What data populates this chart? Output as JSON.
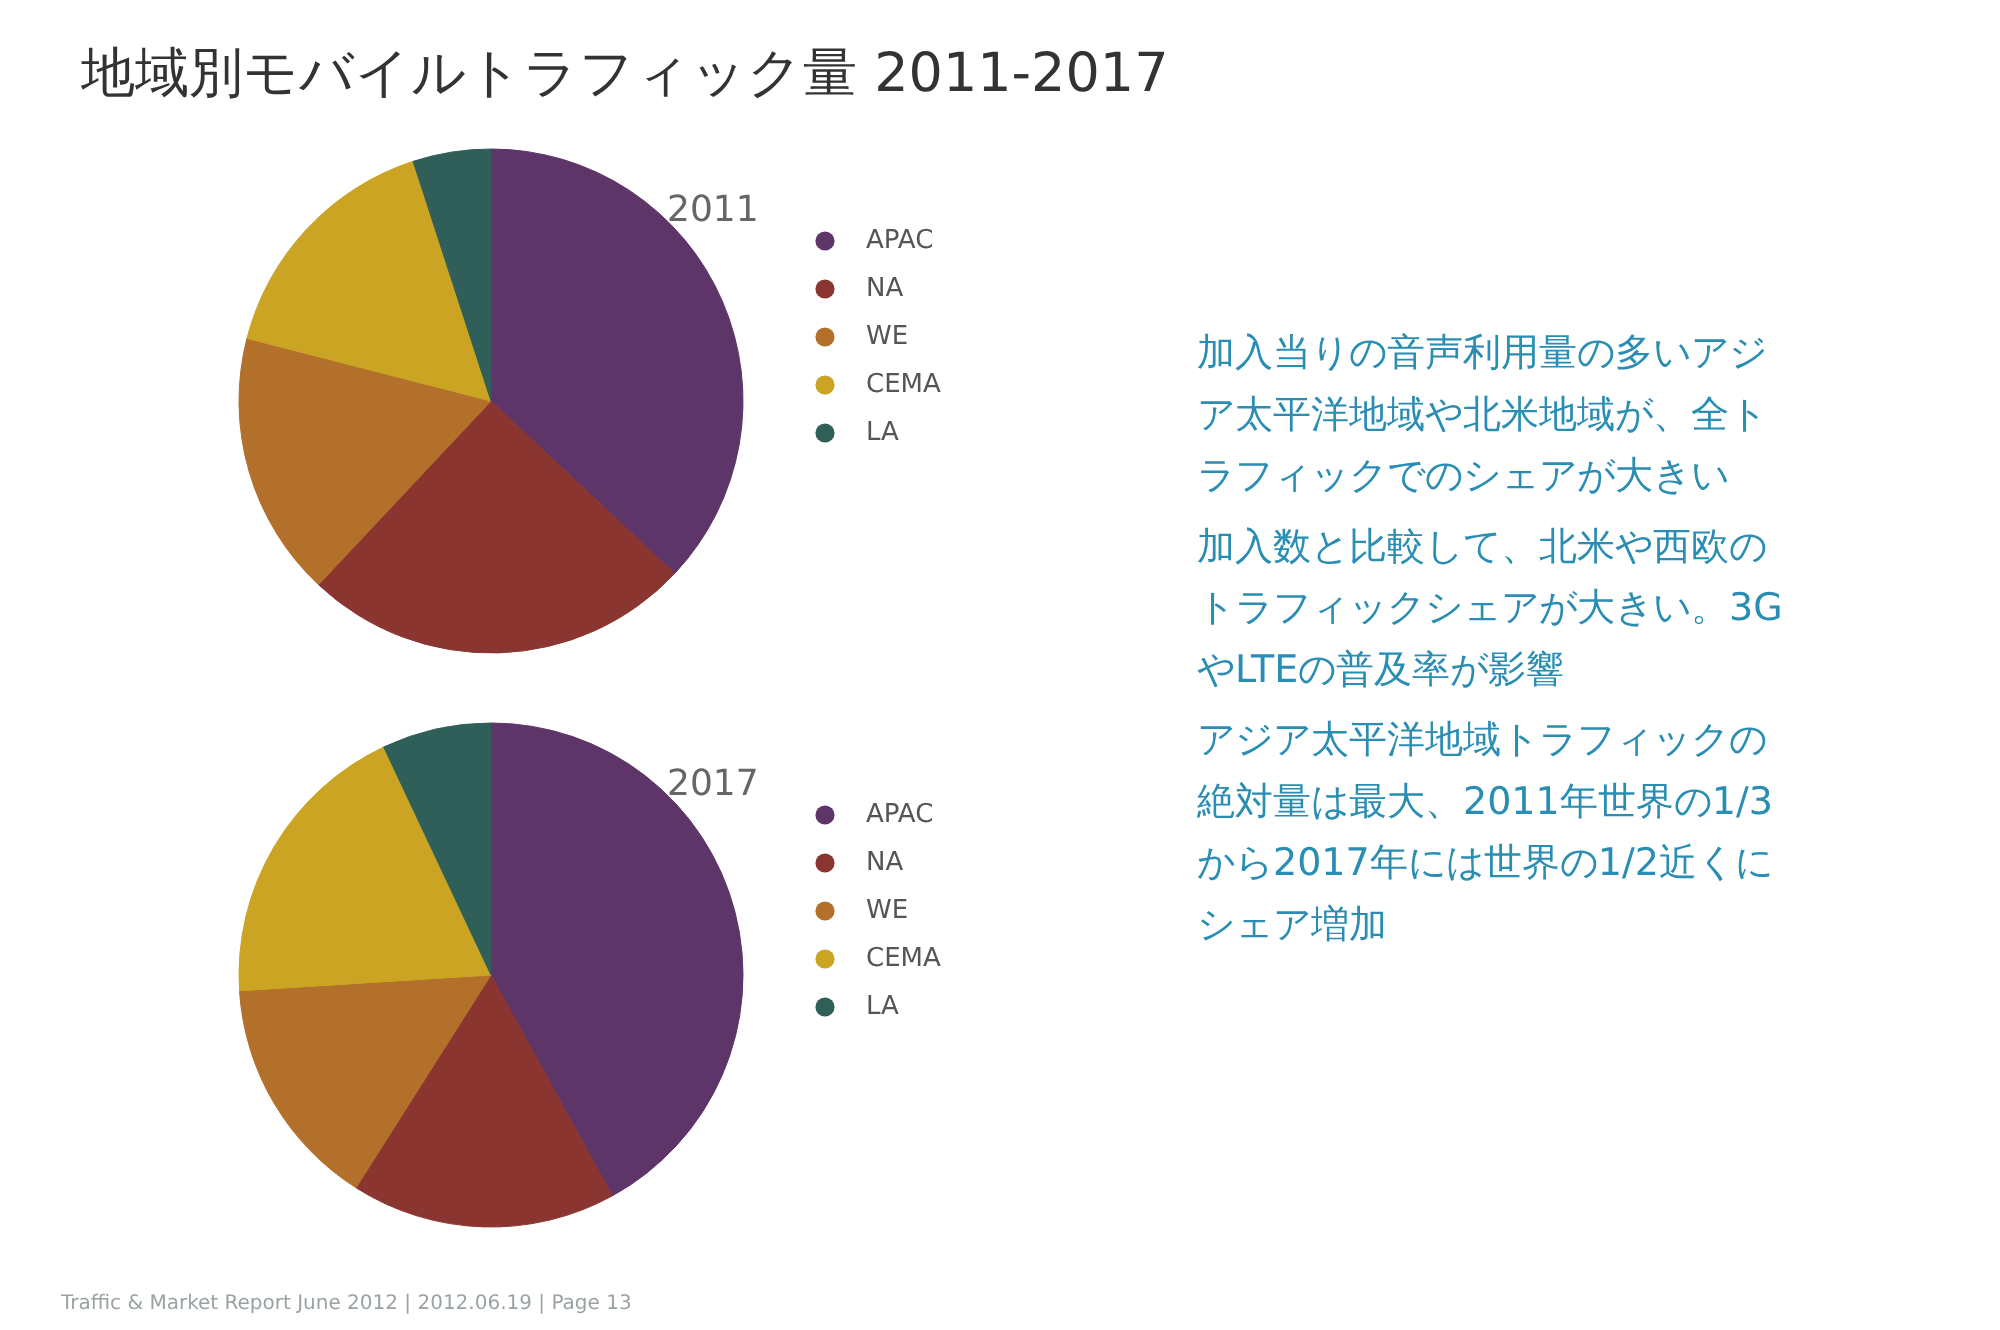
{
  "chart_data": [
    {
      "type": "pie",
      "title": "地域別モバイルトラフィック量 2011-2017",
      "subtitle": "2011",
      "categories": [
        "APAC",
        "NA",
        "WE",
        "CEMA",
        "LA"
      ],
      "values": [
        37,
        25,
        17,
        16,
        5
      ],
      "colors": [
        "#5e3568",
        "#8a3530",
        "#b3702b",
        "#cba424",
        "#2f5f58"
      ],
      "legend": "right"
    },
    {
      "type": "pie",
      "title": "2017",
      "categories": [
        "APAC",
        "NA",
        "WE",
        "CEMA",
        "LA"
      ],
      "values": [
        42,
        17,
        15,
        19,
        7
      ],
      "colors": [
        "#5e3568",
        "#8a3530",
        "#b3702b",
        "#cba424",
        "#2f5f58"
      ],
      "legend": "right",
      "annotations": [
        "Traffic & Market Report June 2012  |  2012.06.19  | Page 13"
      ]
    },
    {
      "type": "other",
      "annotations": [
        "加入当りの音声利用量の多いアジア太平洋地域や北米地域が、全トラフィックでのシェアが大きい",
        "加入数と比較して、北米や西欧のトラフィックシェアが大きい。3GやLTEの普及率が影響",
        "アジア太平洋地域トラフィックの絶対量は最大、2011年世界の1/3から2017年には世界の1/2近くにシェア増加"
      ]
    }
  ]
}
